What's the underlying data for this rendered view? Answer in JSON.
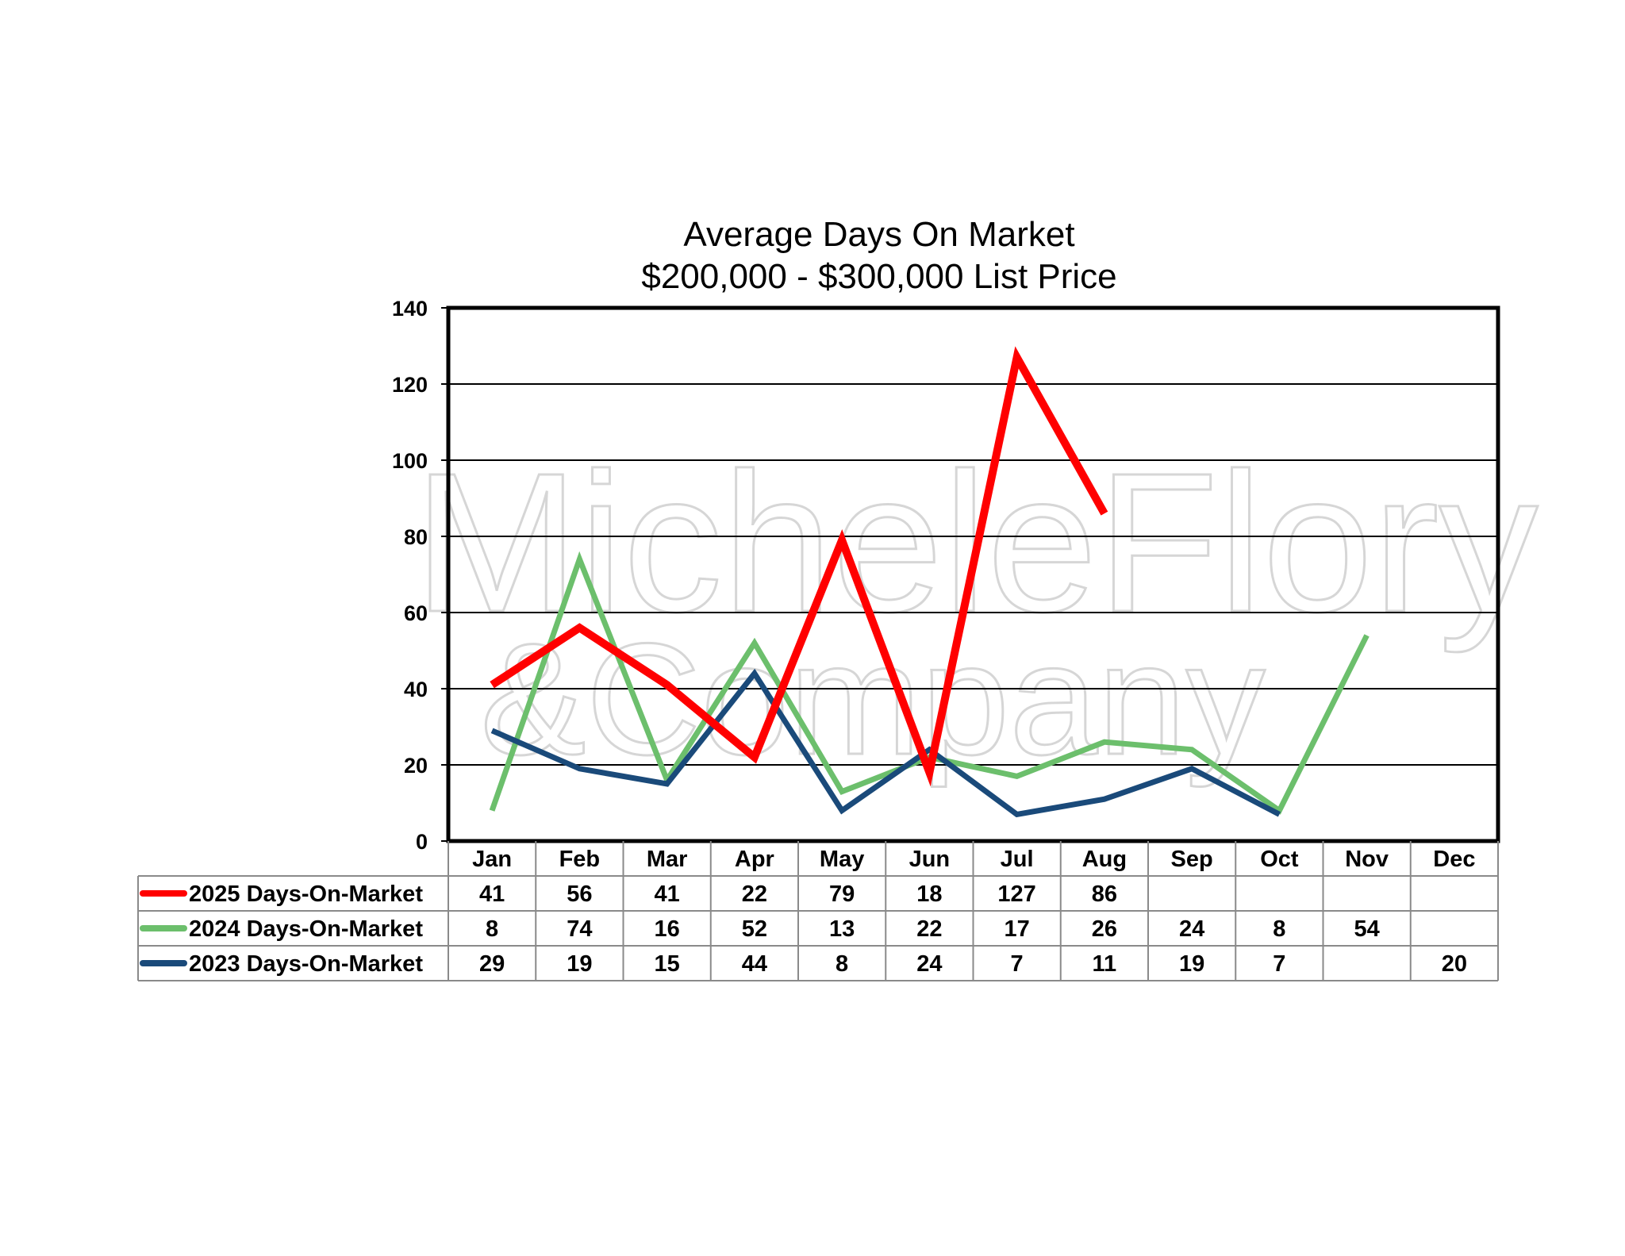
{
  "chart_data": {
    "type": "line",
    "title": "Average Days On Market",
    "subtitle": "$200,000 - $300,000 List Price",
    "categories": [
      "Jan",
      "Feb",
      "Mar",
      "Apr",
      "May",
      "Jun",
      "Jul",
      "Aug",
      "Sep",
      "Oct",
      "Nov",
      "Dec"
    ],
    "ylim": [
      0,
      140
    ],
    "yticks": [
      0,
      20,
      40,
      60,
      80,
      100,
      120,
      140
    ],
    "grid": true,
    "legend": "data-table-below",
    "series": [
      {
        "name": "2025 Days-On-Market",
        "color": "#ff0000",
        "values": [
          41,
          56,
          41,
          22,
          79,
          18,
          127,
          86,
          null,
          null,
          null,
          null
        ]
      },
      {
        "name": "2024 Days-On-Market",
        "color": "#6cbf6c",
        "values": [
          8,
          74,
          16,
          52,
          13,
          22,
          17,
          26,
          24,
          8,
          54,
          null
        ]
      },
      {
        "name": "2023 Days-On-Market",
        "color": "#1a4a7a",
        "values": [
          29,
          19,
          15,
          44,
          8,
          24,
          7,
          11,
          19,
          7,
          null,
          20
        ]
      }
    ]
  },
  "watermark": {
    "line1": "MicheleFlory",
    "line2": "&Company"
  }
}
